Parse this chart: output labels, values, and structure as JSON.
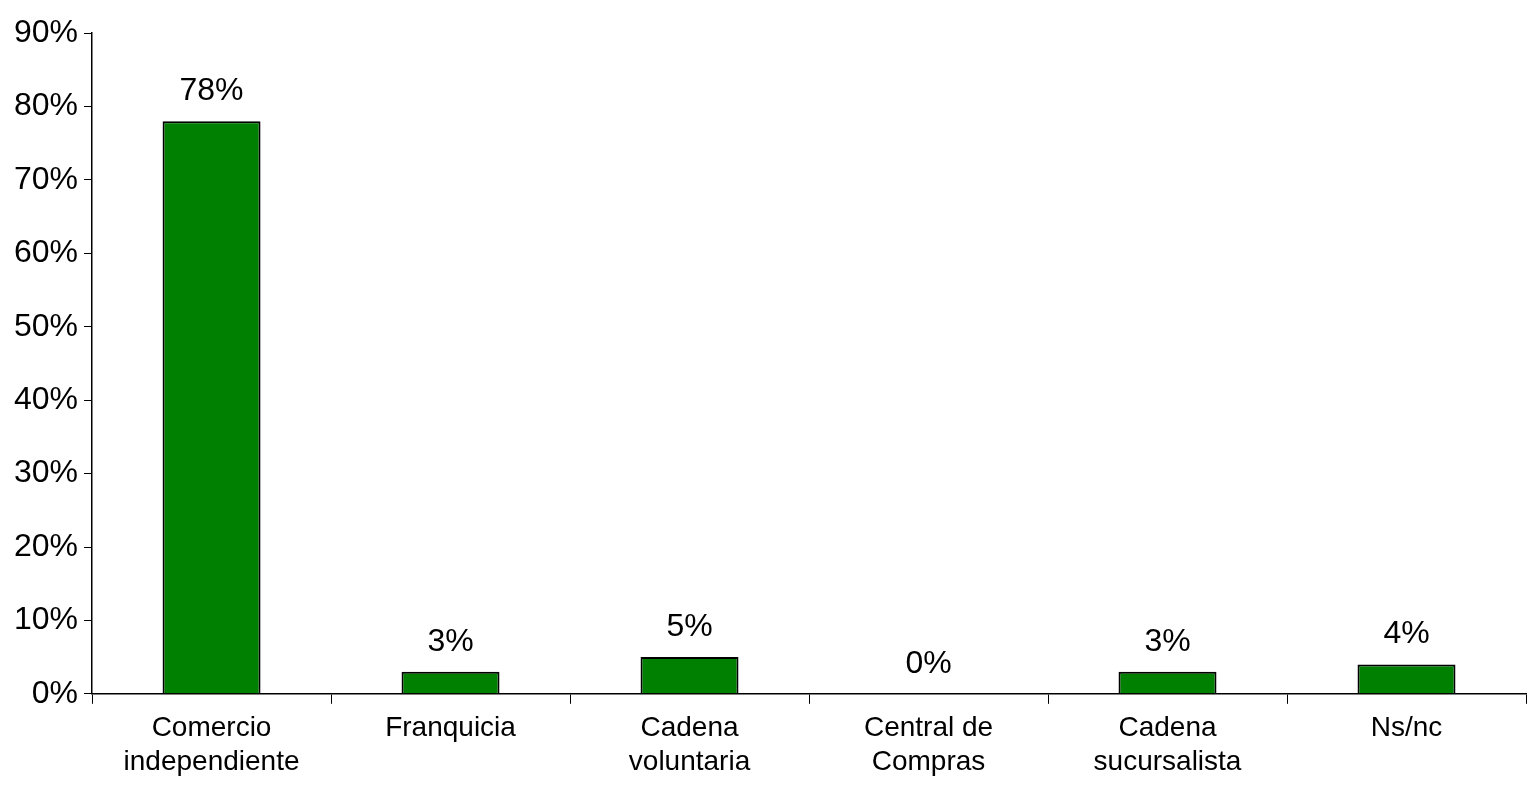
{
  "chart_data": {
    "type": "bar",
    "categories": [
      "Comercio\nindependiente",
      "Franquicia",
      "Cadena\nvoluntaria",
      "Central de\nCompras",
      "Cadena\nsucursalista",
      "Ns/nc"
    ],
    "values": [
      78,
      3,
      5,
      0,
      3,
      4
    ],
    "value_labels": [
      "78%",
      "3%",
      "5%",
      "0%",
      "3%",
      "4%"
    ],
    "color": "#008000",
    "ylim": [
      0,
      90
    ],
    "yticks": [
      {
        "value": 0,
        "label": "0%"
      },
      {
        "value": 10,
        "label": "10%"
      },
      {
        "value": 20,
        "label": "20%"
      },
      {
        "value": 30,
        "label": "30%"
      },
      {
        "value": 40,
        "label": "40%"
      },
      {
        "value": 50,
        "label": "50%"
      },
      {
        "value": 60,
        "label": "60%"
      },
      {
        "value": 70,
        "label": "70%"
      },
      {
        "value": 80,
        "label": "80%"
      },
      {
        "value": 90,
        "label": "90%"
      }
    ],
    "grid": false,
    "legend": false
  }
}
